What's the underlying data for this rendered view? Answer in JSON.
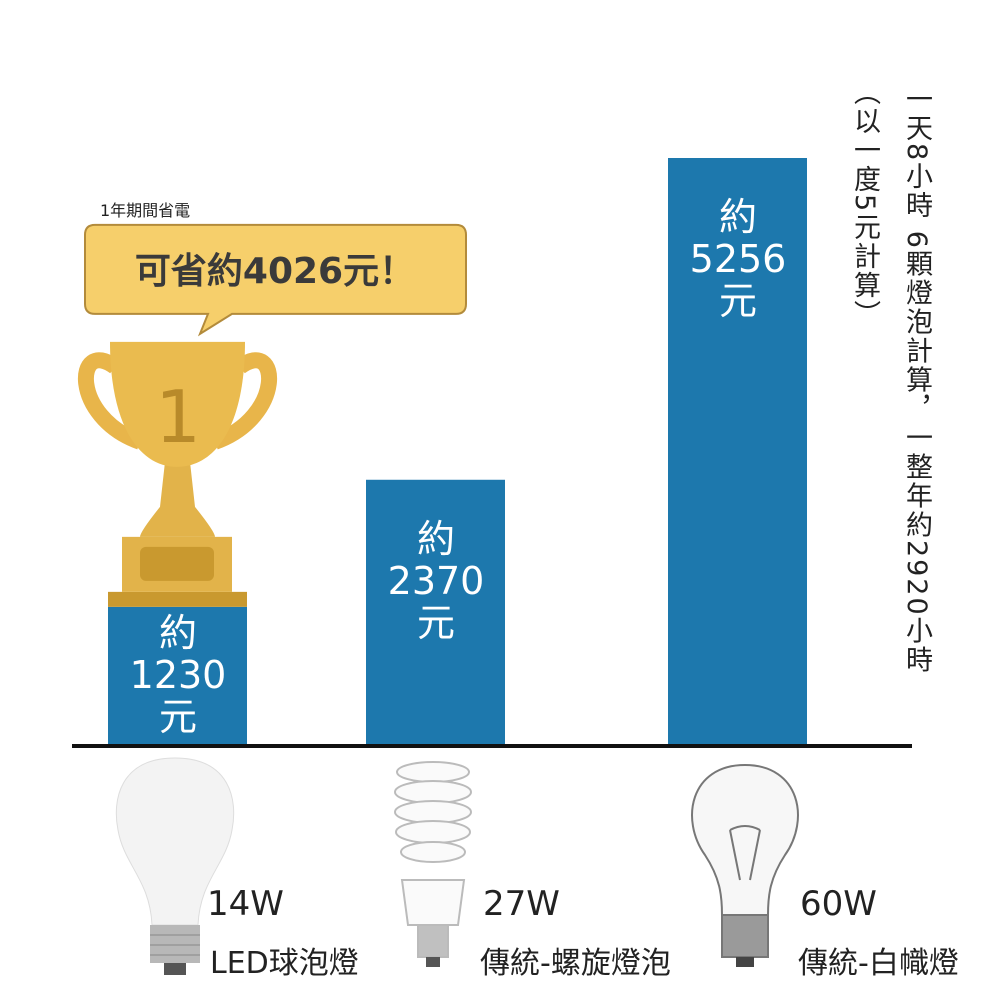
{
  "header": {
    "caption": "1年期間省電",
    "callout": "可省約4026元！",
    "badge": "1"
  },
  "chart_data": {
    "type": "bar",
    "categories": [
      "LED球泡燈",
      "傳統-螺旋燈泡",
      "傳統-白幟燈"
    ],
    "wattages": [
      "14W",
      "27W",
      "60W"
    ],
    "values": [
      1230,
      2370,
      5256
    ],
    "value_labels": [
      "約\n1230\n元",
      "約\n2370\n元",
      "約\n5256\n元"
    ],
    "color": "#1d78ad"
  },
  "notes": [
    "一天8小時 6顆燈泡計算，一整年約2920小時",
    "（以一度5元計算）"
  ]
}
